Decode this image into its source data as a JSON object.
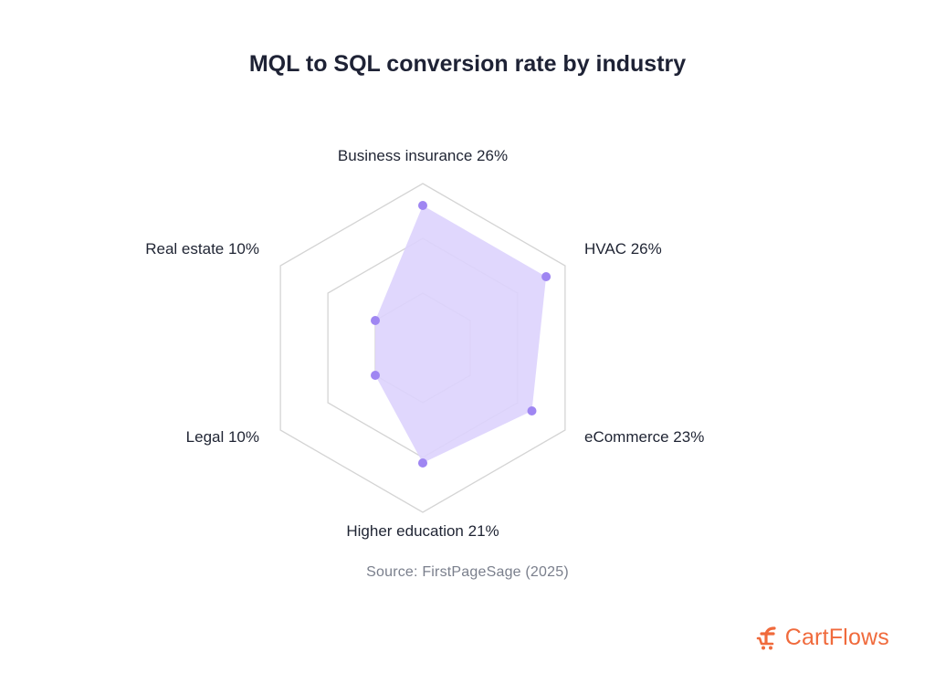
{
  "title": "MQL to SQL conversion rate by industry",
  "source": "Source: FirstPageSage (2025)",
  "brand": {
    "name": "CartFlows",
    "color": "#f06a3c",
    "icon": "cartflows-logo-icon"
  },
  "colors": {
    "grid": "#d4d4d4",
    "fill": "#ddd3fd",
    "point": "#9f86f2",
    "text": "#1f2433"
  },
  "chart_data": {
    "type": "radar",
    "title": "MQL to SQL conversion rate by industry",
    "unit": "%",
    "scale_max": 30,
    "grid_levels": [
      10,
      20,
      30
    ],
    "grid": true,
    "labels": [
      "Business insurance 26%",
      "HVAC 26%",
      "eCommerce 23%",
      "Higher education 21%",
      "Legal 10%",
      "Real estate 10%"
    ],
    "categories": [
      "Business insurance",
      "HVAC",
      "eCommerce",
      "Higher education",
      "Legal",
      "Real estate"
    ],
    "values": [
      26,
      26,
      23,
      21,
      10,
      10
    ]
  }
}
